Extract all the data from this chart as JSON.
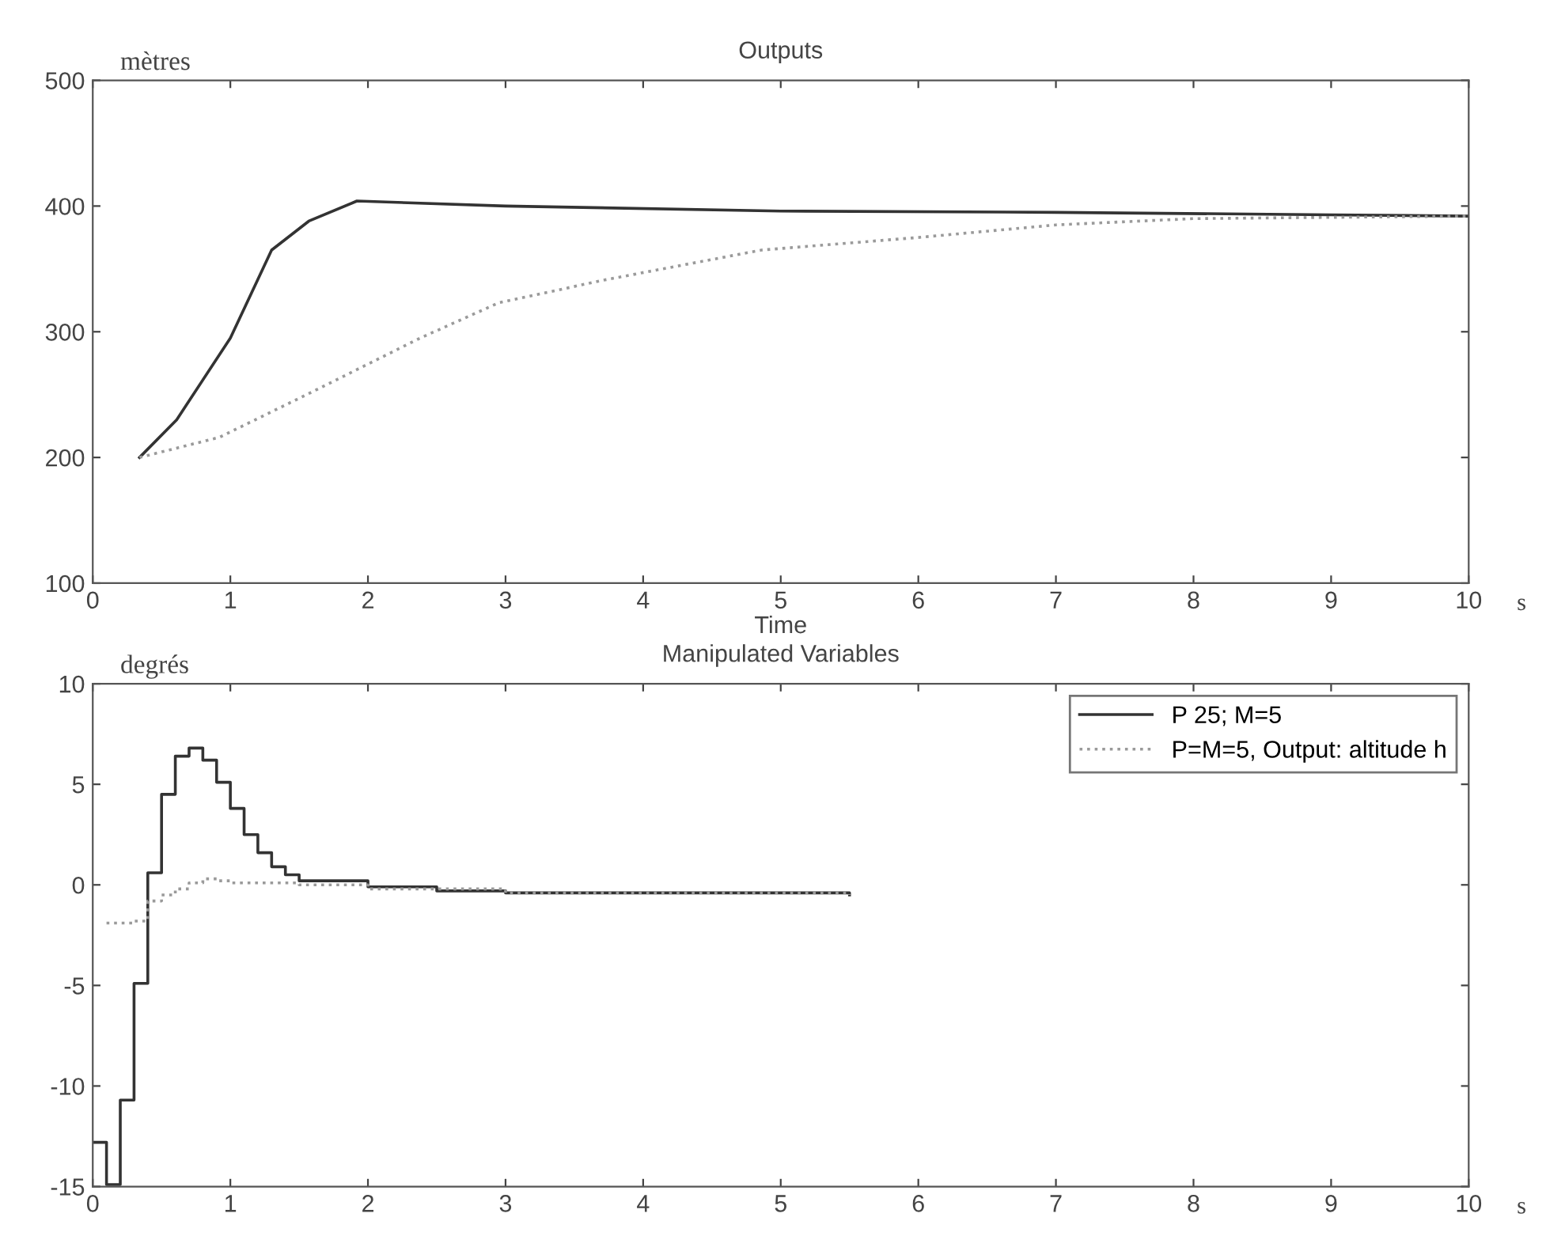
{
  "chart_data": [
    {
      "type": "line",
      "title": "Outputs",
      "ylabel": "mètres",
      "xlabel": "Time",
      "annotations": [
        "s"
      ],
      "xlim": [
        0,
        10
      ],
      "ylim": [
        100,
        500
      ],
      "xticks": [
        0,
        1,
        2,
        3,
        4,
        5,
        6,
        7,
        8,
        9,
        10
      ],
      "yticks": [
        100,
        200,
        300,
        400,
        500
      ],
      "grid": false,
      "legend": false,
      "series": [
        {
          "color": "#333333",
          "line_style": "solid",
          "x": [
            0.34,
            0.61,
            1.0,
            1.3,
            1.57,
            1.92,
            3,
            5,
            7,
            9,
            10
          ],
          "values": [
            200,
            230,
            295,
            365,
            388,
            404,
            400,
            396,
            395,
            393,
            392
          ]
        },
        {
          "color": "#9a9a9a",
          "line_style": "dotted",
          "x": [
            0.34,
            0.92,
            1.61,
            2.38,
            2.95,
            3.71,
            4.86,
            6,
            7,
            8,
            10
          ],
          "values": [
            200,
            216,
            253,
            295,
            323,
            341,
            365,
            375,
            385,
            390,
            392
          ]
        }
      ]
    },
    {
      "type": "step",
      "title": "Manipulated Variables",
      "ylabel": "degrés",
      "annotations": [
        "s"
      ],
      "xlim": [
        0,
        10
      ],
      "ylim": [
        -15,
        10
      ],
      "xticks": [
        0,
        1,
        2,
        3,
        4,
        5,
        6,
        7,
        8,
        9,
        10
      ],
      "yticks": [
        -15,
        -10,
        -5,
        0,
        5,
        10
      ],
      "grid": false,
      "legend": "top right",
      "series": [
        {
          "name": "P 25; M=5",
          "color": "#333333",
          "line_style": "solid",
          "x": [
            0,
            0.1,
            0.2,
            0.3,
            0.4,
            0.5,
            0.6,
            0.7,
            0.8,
            0.9,
            1.0,
            1.1,
            1.2,
            1.3,
            1.4,
            1.5,
            2.0,
            2.5,
            3.0,
            5.5
          ],
          "values": [
            -12.8,
            -14.9,
            -10.7,
            -4.9,
            0.6,
            4.5,
            6.4,
            6.8,
            6.2,
            5.1,
            3.8,
            2.5,
            1.6,
            0.9,
            0.5,
            0.2,
            -0.1,
            -0.3,
            -0.4,
            -0.5
          ]
        },
        {
          "name": "P=M=5, Output: altitude h",
          "color": "#9a9a9a",
          "line_style": "dotted",
          "x": [
            0.1,
            0.2,
            0.3,
            0.4,
            0.5,
            0.6,
            0.7,
            0.8,
            0.9,
            1.0,
            1.5,
            2.0,
            3.0,
            5.5
          ],
          "values": [
            -1.9,
            -1.9,
            -1.8,
            -0.8,
            -0.5,
            -0.2,
            0.1,
            0.3,
            0.2,
            0.1,
            0.0,
            -0.2,
            -0.4,
            -0.5
          ]
        }
      ]
    }
  ]
}
